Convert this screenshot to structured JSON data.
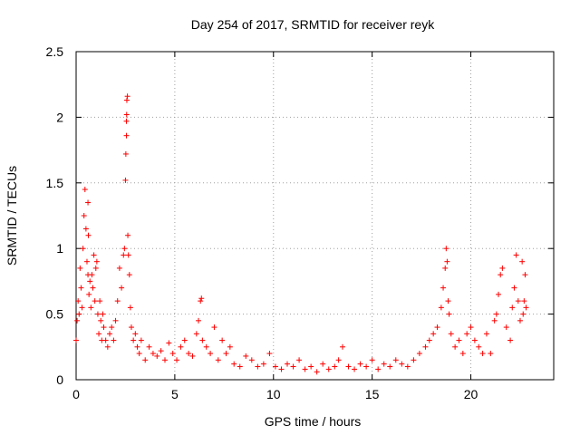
{
  "chart_data": {
    "type": "scatter",
    "title": "Day 254 of 2017, SRMTID for receiver reyk",
    "xlabel": "GPS time / hours",
    "ylabel": "SRMTID / TECUs",
    "xlim": [
      0,
      24.2
    ],
    "ylim": [
      0,
      2.5
    ],
    "xticks": [
      0,
      5,
      10,
      15,
      20
    ],
    "xtick_labels": [
      "0",
      "5",
      "10",
      "15",
      "20"
    ],
    "yticks": [
      0,
      0.5,
      1,
      1.5,
      2,
      2.5
    ],
    "ytick_labels": [
      "0",
      "0.5",
      "1",
      "1.5",
      "2",
      "2.5"
    ],
    "grid": true,
    "marker": "+",
    "color": "#ff0000",
    "series": [
      {
        "name": "SRMTID",
        "x": [
          0.0,
          0.05,
          0.1,
          0.15,
          0.2,
          0.25,
          0.3,
          0.35,
          0.4,
          0.45,
          0.5,
          0.55,
          0.6,
          0.6,
          0.62,
          0.65,
          0.7,
          0.75,
          0.8,
          0.85,
          0.9,
          0.95,
          1.0,
          1.05,
          1.1,
          1.15,
          1.2,
          1.25,
          1.3,
          1.35,
          1.4,
          1.5,
          1.6,
          1.7,
          1.8,
          1.9,
          2.0,
          2.1,
          2.2,
          2.3,
          2.4,
          2.45,
          2.5,
          2.52,
          2.55,
          2.55,
          2.56,
          2.57,
          2.6,
          2.62,
          2.65,
          2.7,
          2.75,
          2.8,
          2.9,
          3.0,
          3.1,
          3.2,
          3.3,
          3.5,
          3.7,
          3.9,
          4.1,
          4.3,
          4.5,
          4.7,
          4.9,
          5.1,
          5.3,
          5.5,
          5.7,
          5.9,
          6.1,
          6.2,
          6.3,
          6.35,
          6.4,
          6.6,
          6.8,
          7.0,
          7.2,
          7.4,
          7.6,
          7.8,
          8.0,
          8.3,
          8.6,
          8.9,
          9.2,
          9.5,
          9.8,
          10.1,
          10.4,
          10.7,
          11.0,
          11.3,
          11.6,
          11.9,
          12.2,
          12.5,
          12.8,
          13.1,
          13.3,
          13.5,
          13.8,
          14.1,
          14.4,
          14.7,
          15.0,
          15.3,
          15.6,
          15.9,
          16.2,
          16.5,
          16.8,
          17.1,
          17.4,
          17.7,
          17.9,
          18.1,
          18.3,
          18.5,
          18.6,
          18.7,
          18.75,
          18.8,
          18.85,
          18.9,
          19.0,
          19.2,
          19.4,
          19.6,
          19.8,
          20.0,
          20.2,
          20.4,
          20.6,
          20.8,
          21.0,
          21.2,
          21.3,
          21.4,
          21.5,
          21.6,
          21.8,
          22.0,
          22.1,
          22.2,
          22.3,
          22.4,
          22.5,
          22.6,
          22.65,
          22.7,
          22.75,
          22.8
        ],
        "y": [
          0.3,
          0.45,
          0.6,
          0.5,
          0.85,
          0.7,
          0.55,
          1.0,
          1.25,
          1.45,
          1.15,
          0.9,
          1.35,
          0.8,
          1.1,
          0.65,
          0.75,
          0.55,
          0.8,
          0.7,
          0.95,
          0.6,
          0.85,
          0.9,
          0.5,
          0.35,
          0.6,
          0.45,
          0.3,
          0.5,
          0.4,
          0.3,
          0.25,
          0.35,
          0.4,
          0.3,
          0.45,
          0.6,
          0.85,
          0.7,
          0.95,
          1.0,
          1.52,
          1.72,
          1.86,
          1.97,
          2.02,
          2.13,
          2.16,
          1.1,
          0.95,
          0.8,
          0.55,
          0.4,
          0.3,
          0.35,
          0.25,
          0.2,
          0.3,
          0.15,
          0.25,
          0.2,
          0.18,
          0.22,
          0.15,
          0.28,
          0.2,
          0.15,
          0.25,
          0.3,
          0.2,
          0.18,
          0.35,
          0.45,
          0.6,
          0.62,
          0.3,
          0.25,
          0.2,
          0.4,
          0.15,
          0.3,
          0.2,
          0.25,
          0.12,
          0.1,
          0.18,
          0.15,
          0.1,
          0.12,
          0.2,
          0.1,
          0.08,
          0.12,
          0.1,
          0.15,
          0.08,
          0.1,
          0.06,
          0.12,
          0.08,
          0.1,
          0.15,
          0.25,
          0.1,
          0.08,
          0.12,
          0.1,
          0.15,
          0.08,
          0.12,
          0.1,
          0.15,
          0.12,
          0.1,
          0.15,
          0.2,
          0.25,
          0.3,
          0.35,
          0.4,
          0.55,
          0.7,
          0.85,
          1.0,
          0.9,
          0.6,
          0.5,
          0.35,
          0.25,
          0.3,
          0.2,
          0.35,
          0.4,
          0.3,
          0.25,
          0.2,
          0.35,
          0.2,
          0.45,
          0.5,
          0.65,
          0.8,
          0.85,
          0.4,
          0.3,
          0.55,
          0.7,
          0.95,
          0.6,
          0.45,
          0.9,
          0.5,
          0.6,
          0.8,
          0.55
        ]
      }
    ]
  }
}
